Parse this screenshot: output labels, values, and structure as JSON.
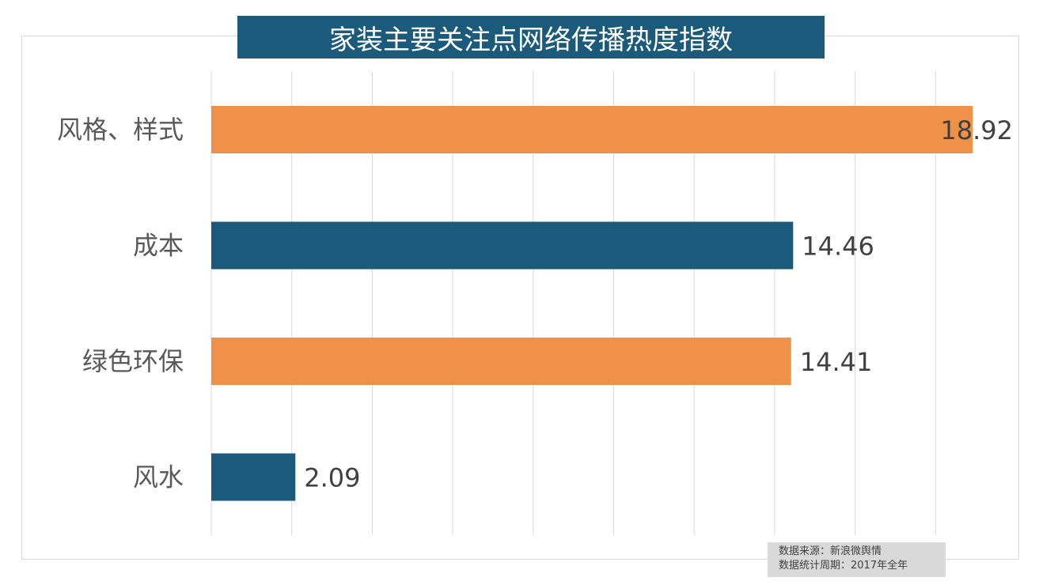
{
  "chart_data": {
    "type": "bar",
    "orientation": "horizontal",
    "title": "家装主要关注点网络传播热度指数",
    "categories": [
      "风格、样式",
      "成本",
      "绿色环保",
      "风水"
    ],
    "values": [
      18.92,
      14.46,
      14.41,
      2.09
    ],
    "data_labels": [
      "18.92",
      "14.46",
      "14.41",
      "2.09"
    ],
    "colors": [
      "#f0914a",
      "#1b5a7a",
      "#f0914a",
      "#1b5a7a"
    ],
    "xlim": [
      0,
      20
    ],
    "grid": true,
    "grid_step": 2,
    "legend": "none"
  },
  "notes": {
    "source": "数据来源：新浪微舆情",
    "period": "数据统计周期：2017年全年"
  }
}
